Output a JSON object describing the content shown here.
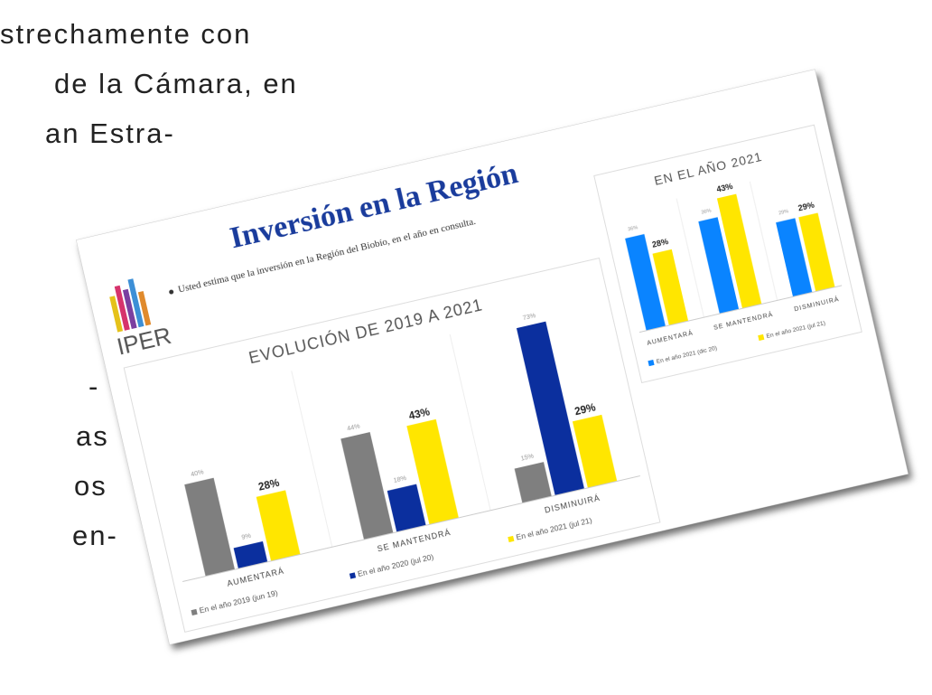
{
  "document": {
    "lines_top": [
      "strechamente con",
      "de la Cámara, en",
      "an Estra-"
    ],
    "lines_bottom": [
      "-",
      "as",
      "os",
      "en-"
    ]
  },
  "slide": {
    "title": "Inversión en la Región",
    "subtitle": "Usted estima que la inversión en la Región del Biobío, en el año en consulta.",
    "logo": "IPER"
  },
  "chart_data": [
    {
      "type": "bar",
      "title": "EVOLUCIÓN DE 2019 A 2021",
      "categories": [
        "AUMENTARÁ",
        "SE MANTENDRÁ",
        "DISMINUIRÁ"
      ],
      "series": [
        {
          "name": "En el año 2019 (jun 19)",
          "color": "#7f7f7f",
          "values": [
            40,
            44,
            15
          ],
          "value_labels": [
            "40%",
            "44%",
            "15%"
          ]
        },
        {
          "name": "En el año 2020 (jul 20)",
          "color": "#0b2f9e",
          "values": [
            9,
            18,
            73
          ],
          "value_labels": [
            "9%",
            "18%",
            "73%"
          ]
        },
        {
          "name": "En el año 2021 (jul 21)",
          "color": "#ffe600",
          "values": [
            28,
            43,
            29
          ],
          "value_labels": [
            "28%",
            "43%",
            "29%"
          ]
        }
      ]
    },
    {
      "type": "bar",
      "title": "EN EL AÑO 2021",
      "categories": [
        "AUMENTARÁ",
        "SE MANTENDRÁ",
        "DISMINUIRÁ"
      ],
      "series": [
        {
          "name": "En el año 2021 (dic 20)",
          "color": "#0a84ff",
          "values": [
            36,
            36,
            29
          ],
          "value_labels": [
            "36%",
            "36%",
            "29%"
          ]
        },
        {
          "name": "En el año 2021 (jul 21)",
          "color": "#ffe600",
          "values": [
            28,
            43,
            29
          ],
          "value_labels": [
            "28%",
            "43%",
            "29%"
          ]
        }
      ]
    }
  ]
}
